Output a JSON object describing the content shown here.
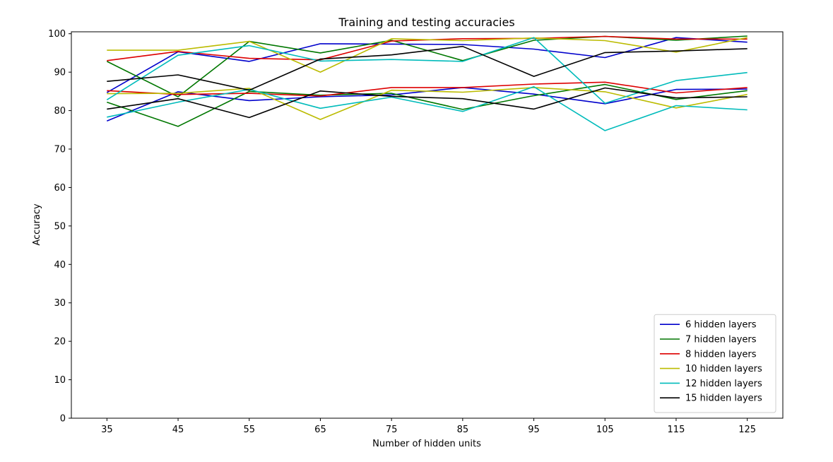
{
  "chart_data": {
    "type": "line",
    "title": "Training and testing accuracies",
    "xlabel": "Number of hidden units",
    "ylabel": "Accuracy",
    "x": [
      35,
      45,
      55,
      65,
      75,
      85,
      95,
      105,
      115,
      125
    ],
    "xlim": [
      30,
      130
    ],
    "ylim": [
      0,
      100.5
    ],
    "xticks": [
      35,
      45,
      55,
      65,
      75,
      85,
      95,
      105,
      115,
      125
    ],
    "yticks": [
      0,
      10,
      20,
      30,
      40,
      50,
      60,
      70,
      80,
      90,
      100
    ],
    "grid": false,
    "legend_position": "bottom-right",
    "legend": [
      "6 hidden layers",
      "7 hidden layers",
      "8 hidden layers",
      "10 hidden layers",
      "12 hidden layers",
      "15 hidden layers"
    ],
    "series": [
      {
        "color": "#0000cc",
        "legend_index": 0,
        "values": [
          84.7,
          95.3,
          92.8,
          97.4,
          97.3,
          97.2,
          96.0,
          93.8,
          99.0,
          97.8
        ]
      },
      {
        "color": "#0000cc",
        "legend_index": 0,
        "values": [
          77.3,
          84.9,
          82.6,
          83.6,
          84.1,
          86.0,
          84.3,
          81.8,
          85.5,
          85.6
        ]
      },
      {
        "color": "#007700",
        "legend_index": 1,
        "values": [
          92.8,
          83.6,
          98.0,
          95.0,
          98.3,
          93.0,
          98.3,
          99.3,
          98.3,
          99.4
        ]
      },
      {
        "color": "#007700",
        "legend_index": 1,
        "values": [
          82.2,
          75.9,
          85.0,
          84.0,
          84.5,
          80.3,
          83.9,
          86.8,
          82.9,
          85.2
        ]
      },
      {
        "color": "#dd0000",
        "legend_index": 2,
        "values": [
          93.0,
          95.4,
          93.6,
          93.2,
          98.1,
          98.7,
          98.8,
          99.3,
          98.6,
          98.6
        ]
      },
      {
        "color": "#dd0000",
        "legend_index": 2,
        "values": [
          85.2,
          84.2,
          84.5,
          83.8,
          86.0,
          86.0,
          86.9,
          87.4,
          84.6,
          86.0
        ]
      },
      {
        "color": "#bbbb00",
        "legend_index": 3,
        "values": [
          95.7,
          95.7,
          98.0,
          90.0,
          98.7,
          98.2,
          98.9,
          98.2,
          95.2,
          99.0
        ]
      },
      {
        "color": "#bbbb00",
        "legend_index": 3,
        "values": [
          84.4,
          84.5,
          85.8,
          77.7,
          85.3,
          84.8,
          86.0,
          84.9,
          80.7,
          84.2
        ]
      },
      {
        "color": "#00bbbb",
        "legend_index": 4,
        "values": [
          82.8,
          94.4,
          96.9,
          92.9,
          93.3,
          92.8,
          99.0,
          81.9,
          87.8,
          89.9
        ]
      },
      {
        "color": "#00bbbb",
        "legend_index": 4,
        "values": [
          78.3,
          82.2,
          85.5,
          80.6,
          83.5,
          79.8,
          86.2,
          74.8,
          81.3,
          80.2
        ]
      },
      {
        "color": "#000000",
        "legend_index": 5,
        "values": [
          87.6,
          89.3,
          85.3,
          93.4,
          94.5,
          96.7,
          88.9,
          95.1,
          95.5,
          96.1
        ]
      },
      {
        "color": "#000000",
        "legend_index": 5,
        "values": [
          80.4,
          83.1,
          78.2,
          85.1,
          83.7,
          83.1,
          80.4,
          85.9,
          83.3,
          83.6
        ]
      }
    ]
  }
}
